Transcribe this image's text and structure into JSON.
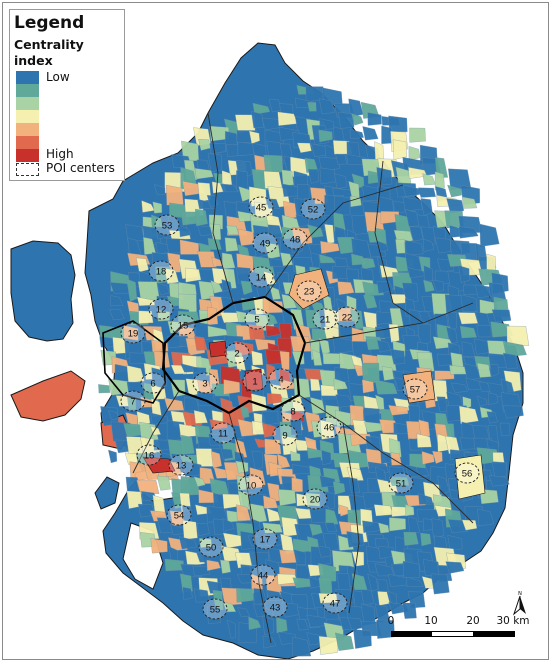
{
  "legend": {
    "title": "Legend",
    "subtitle": "Centrality index",
    "low_label": "Low",
    "high_label": "High",
    "poi_label": "POI centers",
    "ramp_colors": [
      "#2e75b0",
      "#5fa89a",
      "#a9d3a4",
      "#f5f0b0",
      "#f2b27d",
      "#e0694e",
      "#c8312b"
    ]
  },
  "colors": {
    "background_region": "#2e75b0",
    "sea": "#ffffff",
    "boundary": "#1a1a1a"
  },
  "scale": {
    "ticks": [
      "0",
      "10",
      "20",
      "30 km"
    ],
    "north_label": "N"
  },
  "poi_centers": [
    {
      "label": "1"
    },
    {
      "label": "2"
    },
    {
      "label": "3"
    },
    {
      "label": "4"
    },
    {
      "label": "5"
    },
    {
      "label": "6"
    },
    {
      "label": "7"
    },
    {
      "label": "8"
    },
    {
      "label": "9"
    },
    {
      "label": "10"
    },
    {
      "label": "11"
    },
    {
      "label": "12"
    },
    {
      "label": "13"
    },
    {
      "label": "14"
    },
    {
      "label": "15"
    },
    {
      "label": "16"
    },
    {
      "label": "17"
    },
    {
      "label": "18"
    },
    {
      "label": "19"
    },
    {
      "label": "20"
    },
    {
      "label": "21"
    },
    {
      "label": "22"
    },
    {
      "label": "23"
    },
    {
      "label": "43"
    },
    {
      "label": "44"
    },
    {
      "label": "45"
    },
    {
      "label": "46"
    },
    {
      "label": "47"
    },
    {
      "label": "48"
    },
    {
      "label": "49"
    },
    {
      "label": "50"
    },
    {
      "label": "51"
    },
    {
      "label": "52"
    },
    {
      "label": "53"
    },
    {
      "label": "54"
    },
    {
      "label": "55"
    },
    {
      "label": "56"
    },
    {
      "label": "57"
    }
  ]
}
